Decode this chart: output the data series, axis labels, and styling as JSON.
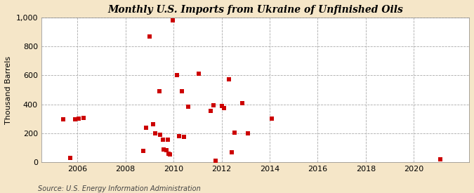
{
  "title": "Monthly U.S. Imports from Ukraine of Unfinished Oils",
  "ylabel": "Thousand Barrels",
  "source": "Source: U.S. Energy Information Administration",
  "background_color": "#f5e6c8",
  "plot_background_color": "#ffffff",
  "marker_color": "#cc0000",
  "marker_size": 16,
  "ylim": [
    0,
    1000
  ],
  "yticks": [
    0,
    200,
    400,
    600,
    800,
    1000
  ],
  "xlim": [
    2004.5,
    2022.3
  ],
  "xticks": [
    2006,
    2008,
    2010,
    2012,
    2014,
    2016,
    2018,
    2020
  ],
  "data_points": [
    [
      2005.4,
      295
    ],
    [
      2005.7,
      30
    ],
    [
      2005.9,
      295
    ],
    [
      2006.05,
      300
    ],
    [
      2006.25,
      305
    ],
    [
      2008.75,
      80
    ],
    [
      2008.85,
      240
    ],
    [
      2009.0,
      870
    ],
    [
      2009.15,
      265
    ],
    [
      2009.25,
      200
    ],
    [
      2009.4,
      490
    ],
    [
      2009.45,
      190
    ],
    [
      2009.55,
      155
    ],
    [
      2009.6,
      90
    ],
    [
      2009.7,
      85
    ],
    [
      2009.75,
      155
    ],
    [
      2009.8,
      60
    ],
    [
      2009.85,
      55
    ],
    [
      2009.97,
      980
    ],
    [
      2010.15,
      600
    ],
    [
      2010.22,
      180
    ],
    [
      2010.35,
      490
    ],
    [
      2010.45,
      175
    ],
    [
      2010.6,
      385
    ],
    [
      2011.05,
      610
    ],
    [
      2011.55,
      355
    ],
    [
      2011.65,
      395
    ],
    [
      2011.75,
      10
    ],
    [
      2012.0,
      390
    ],
    [
      2012.1,
      375
    ],
    [
      2012.3,
      575
    ],
    [
      2012.42,
      70
    ],
    [
      2012.55,
      205
    ],
    [
      2012.85,
      410
    ],
    [
      2013.1,
      200
    ],
    [
      2014.1,
      300
    ],
    [
      2021.1,
      20
    ]
  ]
}
